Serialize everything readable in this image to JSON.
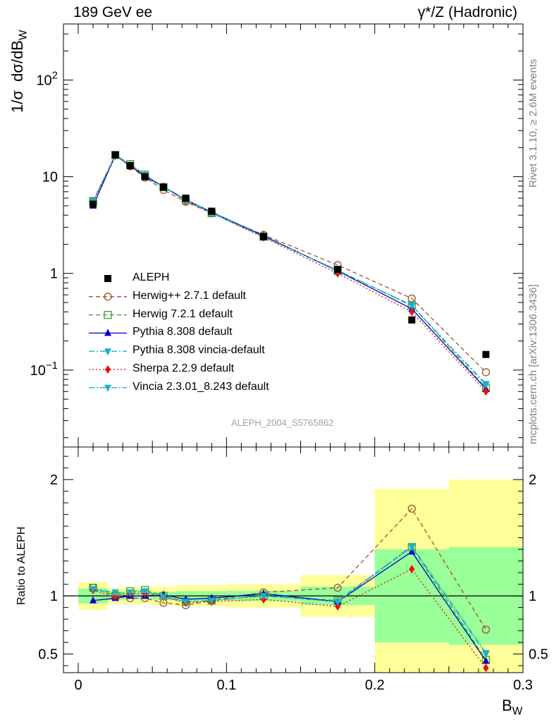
{
  "header": {
    "left": "189 GeV ee",
    "right": "γ*/Z (Hadronic)"
  },
  "side_text": {
    "top": "Rivet 3.1.10, ≥ 2.6M events",
    "bottom": "mcplots.cern.ch [arXiv:1306.3436]"
  },
  "analysis_label": "ALEPH_2004_S5765862",
  "chart_data": [
    {
      "type": "line",
      "panel": "main",
      "ylabel": "1/σ dσ/dB_W",
      "yscale": "log",
      "ylim": [
        0.016,
        380
      ],
      "xlim": [
        -0.01,
        0.3
      ],
      "y_tick_labels": [
        "10^{-1}",
        "1",
        "10",
        "10^{2}"
      ],
      "legend_position": "center-left",
      "x": [
        0.01,
        0.025,
        0.035,
        0.045,
        0.0575,
        0.0725,
        0.09,
        0.125,
        0.175,
        0.225,
        0.275
      ],
      "data": {
        "name": "ALEPH",
        "values": [
          5.2,
          16.8,
          13.0,
          10.0,
          7.8,
          6.0,
          4.4,
          2.4,
          1.1,
          0.33,
          0.145
        ],
        "color": "#000000"
      },
      "series": [
        {
          "name": "Herwig++ 2.7.1 default",
          "color": "#a0522d",
          "dash": "6,4",
          "marker": "circle-open",
          "values": [
            5.6,
            16.8,
            12.8,
            9.8,
            7.3,
            5.5,
            4.2,
            2.5,
            1.22,
            0.55,
            0.095
          ]
        },
        {
          "name": "Herwig 7.2.1 default",
          "color": "#3a9f2a",
          "dash": "6,4",
          "marker": "square-open",
          "values": [
            5.6,
            16.8,
            13.5,
            10.5,
            7.8,
            5.7,
            4.2,
            2.4,
            1.06,
            0.47,
            0.065
          ]
        },
        {
          "name": "Pythia 8.308 default",
          "color": "#0000cc",
          "dash": "",
          "marker": "triangle-up",
          "values": [
            5.0,
            16.6,
            13.0,
            10.0,
            7.9,
            5.8,
            4.3,
            2.45,
            1.06,
            0.43,
            0.064
          ]
        },
        {
          "name": "Pythia 8.308 vincia-default",
          "color": "#1ab0c8",
          "dash": "8,3,2,3",
          "marker": "triangle-down",
          "values": [
            5.5,
            16.6,
            13.3,
            10.4,
            7.9,
            5.8,
            4.3,
            2.4,
            1.07,
            0.47,
            0.07
          ]
        },
        {
          "name": "Sherpa 2.2.9 default",
          "color": "#e8100a",
          "dash": "2,3",
          "marker": "diamond",
          "values": [
            5.5,
            16.4,
            13.2,
            10.3,
            7.9,
            5.6,
            4.2,
            2.35,
            1.0,
            0.4,
            0.06
          ]
        },
        {
          "name": "Vincia 2.3.01_8.243 default",
          "color": "#1ab0c8",
          "dash": "8,3,2,3",
          "marker": "triangle-down",
          "values": [
            5.6,
            16.7,
            13.3,
            10.4,
            7.9,
            5.7,
            4.2,
            2.4,
            1.08,
            0.46,
            0.072
          ]
        }
      ]
    },
    {
      "type": "line",
      "panel": "ratio",
      "ylabel": "Ratio to ALEPH",
      "xlabel": "B_W",
      "ylim": [
        0.34,
        2.28
      ],
      "xlim": [
        -0.01,
        0.3
      ],
      "y_ticks": [
        0.5,
        1,
        2
      ],
      "y_tick_labels": [
        "0.5",
        "1",
        "2"
      ],
      "x_ticks": [
        0,
        0.1,
        0.2,
        0.3
      ],
      "x_tick_labels": [
        "0",
        "0.1",
        "0.2",
        "0.3"
      ],
      "bin_edges": [
        0.0,
        0.02,
        0.03,
        0.04,
        0.05,
        0.065,
        0.08,
        0.1,
        0.15,
        0.2,
        0.25,
        0.3
      ],
      "stat_band": [
        0.065,
        0.035,
        0.03,
        0.03,
        0.035,
        0.04,
        0.04,
        0.045,
        0.08,
        0.4,
        0.42
      ],
      "total_band": [
        0.12,
        0.07,
        0.07,
        0.07,
        0.08,
        0.09,
        0.09,
        0.1,
        0.18,
        0.92,
        1.0
      ],
      "x": [
        0.01,
        0.025,
        0.035,
        0.045,
        0.0575,
        0.0725,
        0.09,
        0.125,
        0.175,
        0.225,
        0.275
      ],
      "series": [
        {
          "name": "Herwig++ 2.7.1 default",
          "color": "#a0522d",
          "dash": "6,4",
          "marker": "circle-open",
          "values": [
            1.07,
            1.0,
            0.98,
            0.98,
            0.94,
            0.92,
            0.96,
            1.03,
            1.07,
            1.75,
            0.71
          ]
        },
        {
          "name": "Herwig 7.2.1 default",
          "color": "#3a9f2a",
          "dash": "6,4",
          "marker": "square-open",
          "values": [
            1.07,
            1.0,
            1.04,
            1.05,
            1.0,
            0.95,
            0.96,
            1.0,
            0.96,
            1.42,
            0.45
          ]
        },
        {
          "name": "Pythia 8.308 default",
          "color": "#0000cc",
          "dash": "",
          "marker": "triangle-up",
          "values": [
            0.96,
            0.98,
            1.0,
            1.0,
            1.01,
            0.97,
            0.98,
            1.02,
            0.95,
            1.38,
            0.44
          ]
        },
        {
          "name": "Pythia 8.308 vincia-default",
          "color": "#1ab0c8",
          "dash": "8,3,2,3",
          "marker": "triangle-down",
          "values": [
            1.05,
            1.03,
            1.03,
            1.04,
            0.99,
            0.95,
            0.96,
            1.0,
            0.95,
            1.42,
            0.5
          ]
        },
        {
          "name": "Sherpa 2.2.9 default",
          "color": "#e8100a",
          "dash": "2,3",
          "marker": "diamond",
          "values": [
            1.05,
            0.99,
            1.02,
            1.02,
            0.99,
            0.94,
            0.95,
            0.97,
            0.91,
            1.23,
            0.38
          ]
        },
        {
          "name": "Vincia 2.3.01_8.243 default",
          "color": "#1ab0c8",
          "dash": "8,3,2,3",
          "marker": "triangle-down",
          "values": [
            1.06,
            1.03,
            1.03,
            1.04,
            0.99,
            0.95,
            0.96,
            1.0,
            0.95,
            1.43,
            0.51
          ]
        }
      ]
    }
  ]
}
